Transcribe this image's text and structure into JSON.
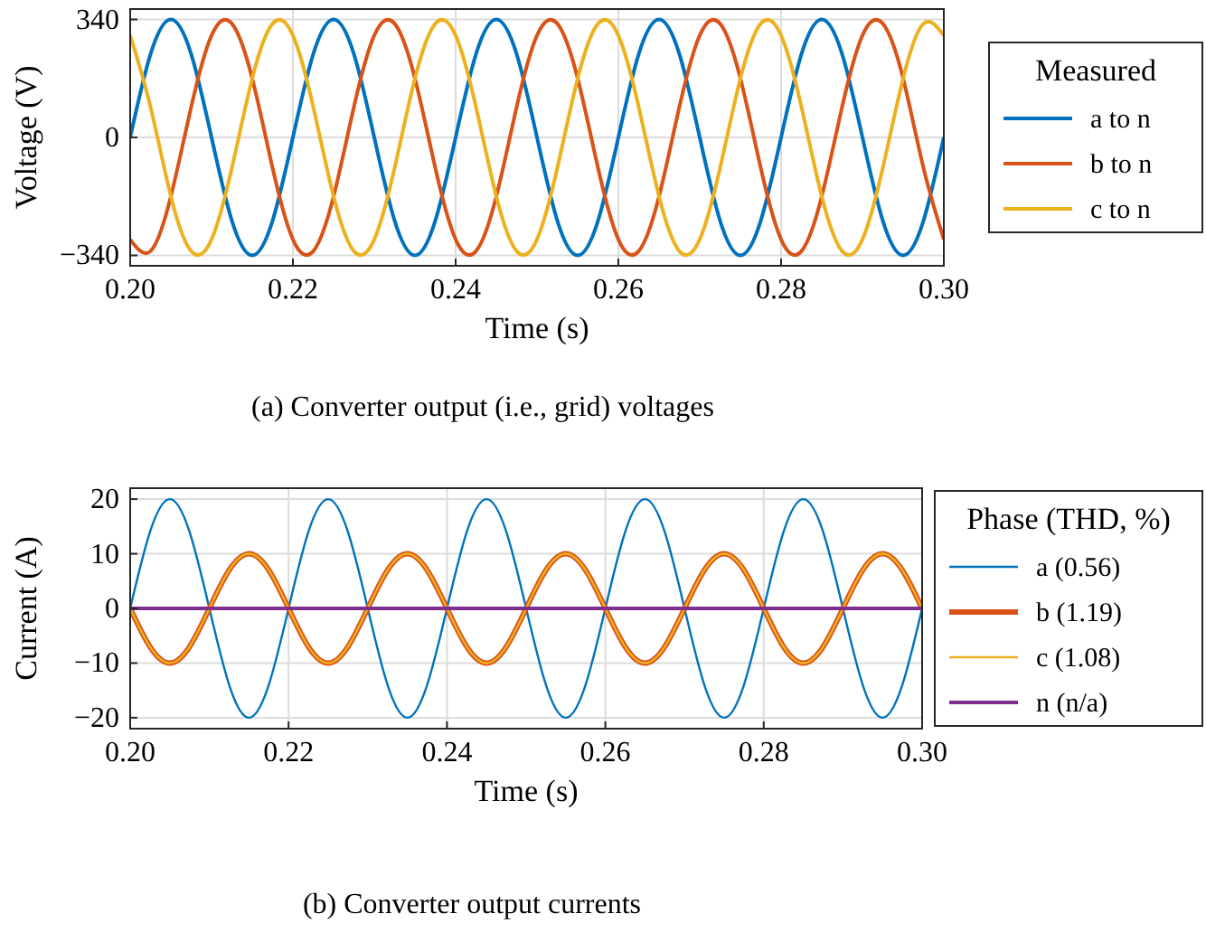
{
  "chart_data": [
    {
      "type": "line",
      "title": "(a) Converter output (i.e., grid) voltages",
      "xlabel": "Time (s)",
      "ylabel": "Voltage (V)",
      "legend_title": "Measured",
      "legend": "right",
      "grid": true,
      "line_style": "solid",
      "marker": "none",
      "xlim": [
        0.2,
        0.3
      ],
      "xticks": [
        {
          "value": 0.2,
          "label": "0.20"
        },
        {
          "value": 0.22,
          "label": "0.22"
        },
        {
          "value": 0.24,
          "label": "0.24"
        },
        {
          "value": 0.26,
          "label": "0.26"
        },
        {
          "value": 0.28,
          "label": "0.28"
        },
        {
          "value": 0.3,
          "label": "0.30"
        }
      ],
      "ylim": [
        -370,
        370
      ],
      "yticks": [
        {
          "value": -340,
          "label": "−340"
        },
        0,
        340
      ],
      "x": [
        0.2,
        0.2025,
        0.205,
        0.2075,
        0.21,
        0.2125,
        0.215,
        0.2175,
        0.22,
        0.2225,
        0.225,
        0.2275,
        0.23,
        0.2325,
        0.235,
        0.2375,
        0.24,
        0.2425,
        0.245,
        0.2475,
        0.25,
        0.2525,
        0.255,
        0.2575,
        0.26,
        0.2625,
        0.265,
        0.2675,
        0.27,
        0.2725,
        0.275,
        0.2775,
        0.28,
        0.2825,
        0.285,
        0.2875,
        0.29,
        0.2925,
        0.295,
        0.2975,
        0.3
      ],
      "series": [
        {
          "name": "a to n",
          "color": "#0072bd",
          "values": [
            0,
            240,
            340,
            240,
            0,
            -240,
            -340,
            -240,
            0,
            240,
            340,
            240,
            0,
            -240,
            -340,
            -240,
            0,
            240,
            340,
            240,
            0,
            -240,
            -340,
            -240,
            0,
            240,
            340,
            240,
            0,
            -240,
            -340,
            -240,
            0,
            240,
            340,
            240,
            0,
            -240,
            -340,
            -240,
            0
          ]
        },
        {
          "name": "b to n",
          "color": "#d95319",
          "values": [
            -294,
            -328,
            -170,
            88,
            294,
            328,
            170,
            -88,
            -294,
            -328,
            -170,
            88,
            294,
            328,
            170,
            -88,
            -294,
            -328,
            -170,
            88,
            294,
            328,
            170,
            -88,
            -294,
            -328,
            -170,
            88,
            294,
            328,
            170,
            -88,
            -294,
            -328,
            -170,
            88,
            294,
            328,
            170,
            -88,
            -294
          ]
        },
        {
          "name": "c to n",
          "color": "#edb120",
          "values": [
            294,
            88,
            -170,
            -328,
            -294,
            -88,
            170,
            328,
            294,
            88,
            -170,
            -328,
            -294,
            -88,
            170,
            328,
            294,
            88,
            -170,
            -328,
            -294,
            -88,
            170,
            328,
            294,
            88,
            -170,
            -328,
            -294,
            -88,
            170,
            328,
            294,
            88,
            -170,
            -328,
            -294,
            -88,
            170,
            328,
            294
          ]
        }
      ]
    },
    {
      "type": "line",
      "title": "(b) Converter output currents",
      "xlabel": "Time (s)",
      "ylabel": "Current (A)",
      "legend_title": "Phase (THD, %)",
      "legend": "right",
      "grid": true,
      "line_style": "solid",
      "marker": "none",
      "xlim": [
        0.2,
        0.3
      ],
      "xticks": [
        {
          "value": 0.2,
          "label": "0.20"
        },
        {
          "value": 0.22,
          "label": "0.22"
        },
        {
          "value": 0.24,
          "label": "0.24"
        },
        {
          "value": 0.26,
          "label": "0.26"
        },
        {
          "value": 0.28,
          "label": "0.28"
        },
        {
          "value": 0.3,
          "label": "0.30"
        }
      ],
      "ylim": [
        -22,
        22
      ],
      "yticks": [
        {
          "value": -20,
          "label": "−20"
        },
        {
          "value": -10,
          "label": "−10"
        },
        0,
        10,
        20
      ],
      "x": [
        0.2,
        0.2025,
        0.205,
        0.2075,
        0.21,
        0.2125,
        0.215,
        0.2175,
        0.22,
        0.2225,
        0.225,
        0.2275,
        0.23,
        0.2325,
        0.235,
        0.2375,
        0.24,
        0.2425,
        0.245,
        0.2475,
        0.25,
        0.2525,
        0.255,
        0.2575,
        0.26,
        0.2625,
        0.265,
        0.2675,
        0.27,
        0.2725,
        0.275,
        0.2775,
        0.28,
        0.2825,
        0.285,
        0.2875,
        0.29,
        0.2925,
        0.295,
        0.2975,
        0.3
      ],
      "series": [
        {
          "name": "a (0.56)",
          "color": "#0072bd",
          "values": [
            0,
            14,
            20,
            14,
            0,
            -14,
            -20,
            -14,
            0,
            14,
            20,
            14,
            0,
            -14,
            -20,
            -14,
            0,
            14,
            20,
            14,
            0,
            -14,
            -20,
            -14,
            0,
            14,
            20,
            14,
            0,
            -14,
            -20,
            -14,
            0,
            14,
            20,
            14,
            0,
            -14,
            -20,
            -14,
            0
          ]
        },
        {
          "name": "b (1.19)",
          "color": "#d95319",
          "values": [
            0,
            -7,
            -10,
            -7,
            0,
            7,
            10,
            7,
            0,
            -7,
            -10,
            -7,
            0,
            7,
            10,
            7,
            0,
            -7,
            -10,
            -7,
            0,
            7,
            10,
            7,
            0,
            -7,
            -10,
            -7,
            0,
            7,
            10,
            7,
            0,
            -7,
            -10,
            -7,
            0,
            7,
            10,
            7,
            0
          ]
        },
        {
          "name": "c (1.08)",
          "color": "#edb120",
          "values": [
            0,
            -7,
            -10,
            -7,
            0,
            7,
            10,
            7,
            0,
            -7,
            -10,
            -7,
            0,
            7,
            10,
            7,
            0,
            -7,
            -10,
            -7,
            0,
            7,
            10,
            7,
            0,
            -7,
            -10,
            -7,
            0,
            7,
            10,
            7,
            0,
            -7,
            -10,
            -7,
            0,
            7,
            10,
            7,
            0
          ]
        },
        {
          "name": "n (n/a)",
          "color": "#7e2f8e",
          "values": [
            0,
            0,
            0,
            0,
            0,
            0,
            0,
            0,
            0,
            0,
            0,
            0,
            0,
            0,
            0,
            0,
            0,
            0,
            0,
            0,
            0,
            0,
            0,
            0,
            0,
            0,
            0,
            0,
            0,
            0,
            0,
            0,
            0,
            0,
            0,
            0,
            0,
            0,
            0,
            0,
            0
          ]
        }
      ]
    }
  ]
}
